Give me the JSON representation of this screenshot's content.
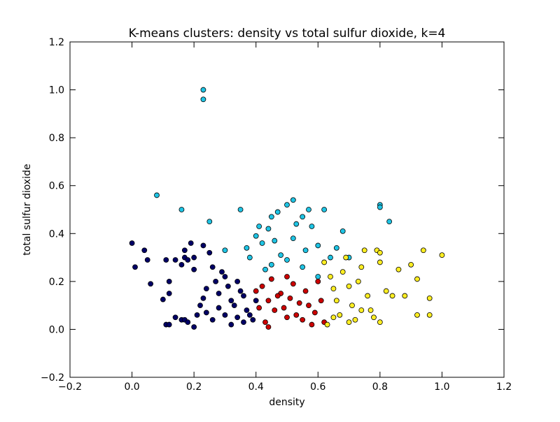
{
  "chart_data": {
    "type": "scatter",
    "title": "K-means clusters: density vs total sulfur dioxide, k=4",
    "xlabel": "density",
    "ylabel": "total sulfur dioxide",
    "xlim": [
      -0.2,
      1.2
    ],
    "ylim": [
      -0.2,
      1.2
    ],
    "xticks": [
      -0.2,
      0.0,
      0.2,
      0.4,
      0.6,
      0.8,
      1.0,
      1.2
    ],
    "yticks": [
      -0.2,
      0.0,
      0.2,
      0.4,
      0.6,
      0.8,
      1.0,
      1.2
    ],
    "grid": false,
    "legend": "none",
    "series": [
      {
        "color": "#000066",
        "points": [
          [
            0.0,
            0.36
          ],
          [
            0.01,
            0.26
          ],
          [
            0.04,
            0.33
          ],
          [
            0.05,
            0.29
          ],
          [
            0.06,
            0.19
          ],
          [
            0.1,
            0.125
          ],
          [
            0.11,
            0.29
          ],
          [
            0.12,
            0.2
          ],
          [
            0.12,
            0.15
          ],
          [
            0.14,
            0.29
          ],
          [
            0.16,
            0.27
          ],
          [
            0.16,
            0.04
          ],
          [
            0.17,
            0.33
          ],
          [
            0.17,
            0.3
          ],
          [
            0.18,
            0.29
          ],
          [
            0.19,
            0.36
          ],
          [
            0.2,
            0.25
          ],
          [
            0.2,
            0.3
          ],
          [
            0.23,
            0.35
          ],
          [
            0.11,
            0.02
          ],
          [
            0.12,
            0.02
          ],
          [
            0.14,
            0.05
          ],
          [
            0.17,
            0.04
          ],
          [
            0.18,
            0.03
          ],
          [
            0.2,
            0.01
          ],
          [
            0.21,
            0.06
          ],
          [
            0.22,
            0.1
          ],
          [
            0.23,
            0.13
          ],
          [
            0.24,
            0.17
          ],
          [
            0.25,
            0.32
          ],
          [
            0.26,
            0.26
          ],
          [
            0.27,
            0.2
          ],
          [
            0.28,
            0.15
          ],
          [
            0.29,
            0.24
          ],
          [
            0.3,
            0.22
          ],
          [
            0.31,
            0.18
          ],
          [
            0.32,
            0.12
          ],
          [
            0.33,
            0.1
          ],
          [
            0.34,
            0.2
          ],
          [
            0.35,
            0.16
          ],
          [
            0.36,
            0.14
          ],
          [
            0.37,
            0.08
          ],
          [
            0.38,
            0.06
          ],
          [
            0.39,
            0.04
          ],
          [
            0.4,
            0.12
          ],
          [
            0.24,
            0.07
          ],
          [
            0.26,
            0.04
          ],
          [
            0.28,
            0.09
          ],
          [
            0.3,
            0.06
          ],
          [
            0.32,
            0.02
          ],
          [
            0.34,
            0.05
          ],
          [
            0.36,
            0.03
          ]
        ]
      },
      {
        "color": "#1fc4e4",
        "points": [
          [
            0.23,
            1.0
          ],
          [
            0.23,
            0.96
          ],
          [
            0.08,
            0.56
          ],
          [
            0.16,
            0.5
          ],
          [
            0.25,
            0.45
          ],
          [
            0.35,
            0.5
          ],
          [
            0.3,
            0.33
          ],
          [
            0.37,
            0.34
          ],
          [
            0.4,
            0.39
          ],
          [
            0.41,
            0.43
          ],
          [
            0.42,
            0.36
          ],
          [
            0.44,
            0.42
          ],
          [
            0.45,
            0.47
          ],
          [
            0.46,
            0.37
          ],
          [
            0.47,
            0.49
          ],
          [
            0.48,
            0.31
          ],
          [
            0.5,
            0.52
          ],
          [
            0.52,
            0.54
          ],
          [
            0.53,
            0.44
          ],
          [
            0.55,
            0.47
          ],
          [
            0.57,
            0.5
          ],
          [
            0.58,
            0.43
          ],
          [
            0.6,
            0.35
          ],
          [
            0.62,
            0.5
          ],
          [
            0.64,
            0.3
          ],
          [
            0.66,
            0.34
          ],
          [
            0.68,
            0.41
          ],
          [
            0.7,
            0.3
          ],
          [
            0.8,
            0.52
          ],
          [
            0.8,
            0.51
          ],
          [
            0.83,
            0.45
          ],
          [
            0.45,
            0.27
          ],
          [
            0.5,
            0.29
          ],
          [
            0.55,
            0.26
          ],
          [
            0.6,
            0.22
          ],
          [
            0.43,
            0.25
          ],
          [
            0.38,
            0.3
          ],
          [
            0.52,
            0.38
          ],
          [
            0.56,
            0.33
          ]
        ]
      },
      {
        "color": "#cc0000",
        "points": [
          [
            0.42,
            0.18
          ],
          [
            0.44,
            0.12
          ],
          [
            0.46,
            0.08
          ],
          [
            0.48,
            0.15
          ],
          [
            0.5,
            0.05
          ],
          [
            0.52,
            0.19
          ],
          [
            0.54,
            0.11
          ],
          [
            0.56,
            0.16
          ],
          [
            0.58,
            0.02
          ],
          [
            0.6,
            0.2
          ],
          [
            0.43,
            0.03
          ],
          [
            0.45,
            0.21
          ],
          [
            0.47,
            0.14
          ],
          [
            0.49,
            0.09
          ],
          [
            0.51,
            0.13
          ],
          [
            0.53,
            0.06
          ],
          [
            0.55,
            0.04
          ],
          [
            0.57,
            0.1
          ],
          [
            0.59,
            0.07
          ],
          [
            0.41,
            0.09
          ],
          [
            0.4,
            0.16
          ],
          [
            0.61,
            0.12
          ],
          [
            0.62,
            0.03
          ],
          [
            0.5,
            0.22
          ],
          [
            0.44,
            0.01
          ]
        ]
      },
      {
        "color": "#ffee22",
        "points": [
          [
            0.62,
            0.28
          ],
          [
            0.64,
            0.22
          ],
          [
            0.65,
            0.17
          ],
          [
            0.66,
            0.12
          ],
          [
            0.67,
            0.06
          ],
          [
            0.68,
            0.24
          ],
          [
            0.69,
            0.3
          ],
          [
            0.7,
            0.18
          ],
          [
            0.71,
            0.1
          ],
          [
            0.72,
            0.04
          ],
          [
            0.73,
            0.2
          ],
          [
            0.74,
            0.26
          ],
          [
            0.75,
            0.33
          ],
          [
            0.76,
            0.14
          ],
          [
            0.77,
            0.08
          ],
          [
            0.78,
            0.05
          ],
          [
            0.79,
            0.33
          ],
          [
            0.8,
            0.32
          ],
          [
            0.8,
            0.28
          ],
          [
            0.82,
            0.16
          ],
          [
            0.84,
            0.14
          ],
          [
            0.86,
            0.25
          ],
          [
            0.88,
            0.14
          ],
          [
            0.9,
            0.27
          ],
          [
            0.92,
            0.21
          ],
          [
            0.92,
            0.06
          ],
          [
            0.94,
            0.33
          ],
          [
            0.96,
            0.06
          ],
          [
            0.96,
            0.13
          ],
          [
            1.0,
            0.31
          ],
          [
            0.63,
            0.02
          ],
          [
            0.65,
            0.05
          ],
          [
            0.7,
            0.03
          ],
          [
            0.74,
            0.08
          ],
          [
            0.8,
            0.03
          ]
        ]
      }
    ]
  }
}
